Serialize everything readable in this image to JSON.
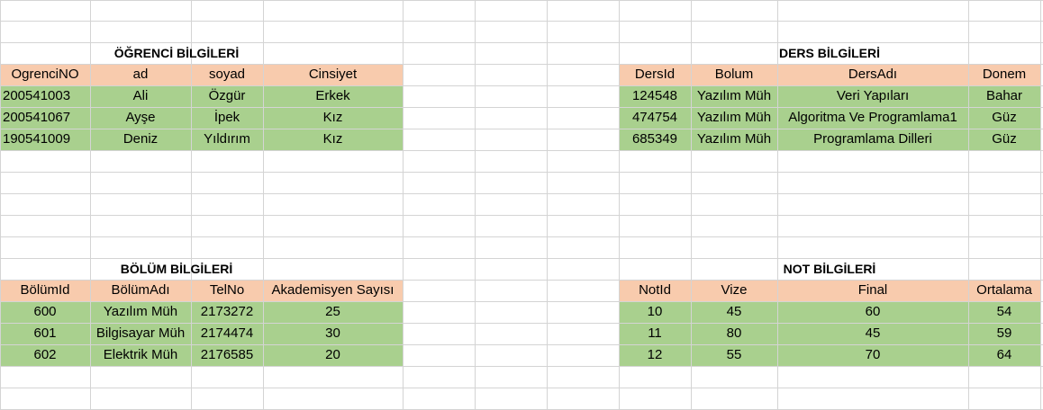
{
  "colors": {
    "header_fill": "#f8cbad",
    "body_fill": "#a9d08e",
    "gridline": "#d4d4d4"
  },
  "ogrenci": {
    "title": "ÖĞRENCİ BİLGİLERİ",
    "headers": [
      "OgrenciNO",
      "ad",
      "soyad",
      "Cinsiyet"
    ],
    "rows": [
      [
        "200541003",
        "Ali",
        "Özgür",
        "Erkek"
      ],
      [
        "200541067",
        "Ayşe",
        "İpek",
        "Kız"
      ],
      [
        "190541009",
        "Deniz",
        "Yıldırım",
        "Kız"
      ]
    ]
  },
  "ders": {
    "title": "DERS BİLGİLERİ",
    "headers": [
      "DersId",
      "Bolum",
      "DersAdı",
      "Donem"
    ],
    "rows": [
      [
        "124548",
        "Yazılım Müh",
        "Veri Yapıları",
        "Bahar"
      ],
      [
        "474754",
        "Yazılım Müh",
        "Algoritma Ve Programlama1",
        "Güz"
      ],
      [
        "685349",
        "Yazılım Müh",
        "Programlama Dilleri",
        "Güz"
      ]
    ]
  },
  "bolum": {
    "title": "BÖLÜM BİLGİLERİ",
    "headers": [
      "BölümId",
      "BölümAdı",
      "TelNo",
      "Akademisyen Sayısı"
    ],
    "rows": [
      [
        "600",
        "Yazılım Müh",
        "2173272",
        "25"
      ],
      [
        "601",
        "Bilgisayar Müh",
        "2174474",
        "30"
      ],
      [
        "602",
        "Elektrik Müh",
        "2176585",
        "20"
      ]
    ]
  },
  "not": {
    "title": "NOT BİLGİLERİ",
    "headers": [
      "NotId",
      "Vize",
      "Final",
      "Ortalama"
    ],
    "rows": [
      [
        "10",
        "45",
        "60",
        "54"
      ],
      [
        "11",
        "80",
        "45",
        "59"
      ],
      [
        "12",
        "55",
        "70",
        "64"
      ]
    ]
  }
}
